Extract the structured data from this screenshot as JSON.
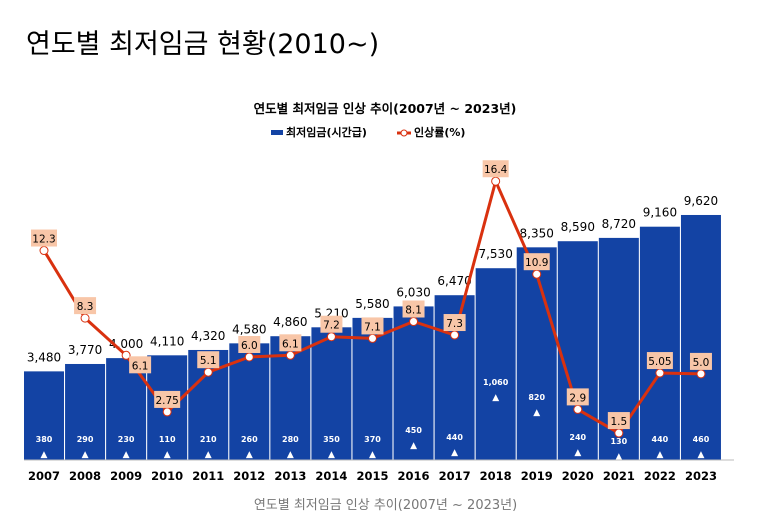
{
  "page_title": "연도별 최저임금 현황(2010~)",
  "caption": "연도별 최저임금 인상 추이(2007년 ~ 2023년)",
  "chart_data": {
    "type": "bar+line",
    "title": "연도별 최저임금 인상 추이(2007년 ~ 2023년)",
    "categories": [
      "2007",
      "2008",
      "2009",
      "2010",
      "2011",
      "2012",
      "2013",
      "2014",
      "2015",
      "2016",
      "2017",
      "2018",
      "2019",
      "2020",
      "2021",
      "2022",
      "2023"
    ],
    "series": [
      {
        "name": "최저임금(시간급)",
        "type": "bar",
        "color": "#1343A4",
        "values": [
          3480,
          3770,
          4000,
          4110,
          4320,
          4580,
          4860,
          5210,
          5580,
          6030,
          6470,
          7530,
          8350,
          8590,
          8720,
          9160,
          9620
        ],
        "labels": [
          "3,480",
          "3,770",
          "4,000",
          "4,110",
          "4,320",
          "4,580",
          "4,860",
          "5,210",
          "5,580",
          "6,030",
          "6,470",
          "7,530",
          "8,350",
          "8,590",
          "8,720",
          "9,160",
          "9,620"
        ]
      },
      {
        "name": "인상률(%)",
        "type": "line",
        "color": "#D9310F",
        "label_bg": "#F8C6A8",
        "values": [
          12.3,
          8.3,
          6.1,
          2.75,
          5.1,
          6.0,
          6.1,
          7.2,
          7.1,
          8.1,
          7.3,
          16.4,
          10.9,
          2.9,
          1.5,
          5.05,
          5.0
        ],
        "labels": [
          "12.3",
          "8.3",
          "6.1",
          "2.75",
          "5.1",
          "6.0",
          "6.1",
          "7.2",
          "7.1",
          "8.1",
          "7.3",
          "16.4",
          "10.9",
          "2.9",
          "1.5",
          "5.05",
          "5.0"
        ]
      }
    ],
    "increase_amounts": [
      "380",
      "290",
      "230",
      "110",
      "210",
      "260",
      "280",
      "350",
      "370",
      "450",
      "440",
      "1,060",
      "820",
      "240",
      "130",
      "440",
      "460"
    ],
    "increase_marker": "▲",
    "legend_position": "top",
    "grid": false
  }
}
